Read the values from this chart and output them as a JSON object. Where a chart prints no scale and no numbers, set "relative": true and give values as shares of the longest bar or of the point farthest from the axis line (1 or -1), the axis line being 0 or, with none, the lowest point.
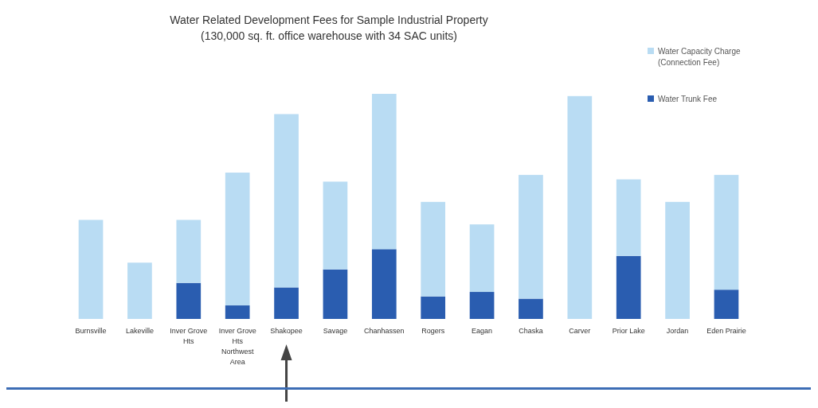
{
  "chart_data": {
    "type": "bar",
    "title": "Water Related Development Fees for Sample Industrial Property",
    "subtitle": "(130,000 sq. ft. office warehouse with 34 SAC units)",
    "relative": true,
    "stacked": true,
    "legend": "top right",
    "categories": [
      "Burnsville",
      "Lakeville",
      "Inver Grove Hts",
      "Inver Grove Hts Northwest Area",
      "Shakopee",
      "Savage",
      "Chanhassen",
      "Rogers",
      "Eagan",
      "Chaska",
      "Carver",
      "Prior Lake",
      "Jordan",
      "Eden Prairie"
    ],
    "series": [
      {
        "name": "Water Trunk Fee",
        "color": "#2a5db0",
        "values": [
          0,
          0,
          0.16,
          0.06,
          0.14,
          0.22,
          0.31,
          0.1,
          0.12,
          0.09,
          0,
          0.28,
          0,
          0.13
        ]
      },
      {
        "name": "Water Capacity Charge (Connection Fee)",
        "color": "#b9dcf3",
        "values": [
          0.44,
          0.25,
          0.28,
          0.59,
          0.77,
          0.39,
          0.69,
          0.42,
          0.3,
          0.55,
          0.99,
          0.34,
          0.52,
          0.51
        ]
      }
    ]
  }
}
